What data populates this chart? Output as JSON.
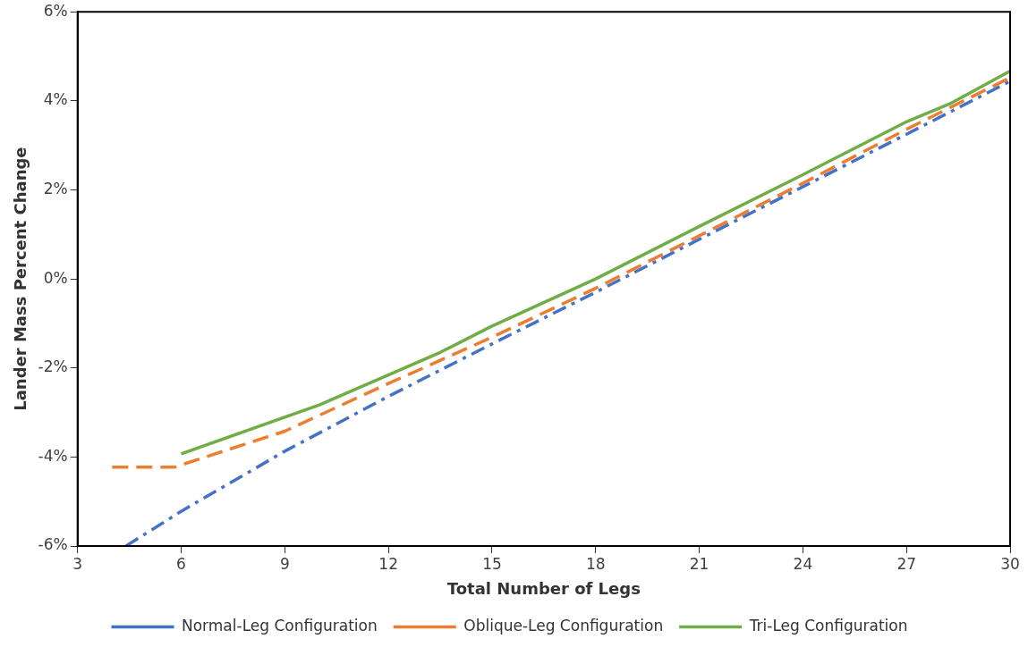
{
  "chart_data": {
    "type": "line",
    "xlabel": "Total Number of Legs",
    "ylabel": "Lander Mass Percent Change",
    "xlim": [
      3,
      30
    ],
    "xticks": [
      3,
      6,
      9,
      12,
      15,
      18,
      21,
      24,
      27,
      30
    ],
    "ylim": [
      -6,
      6
    ],
    "yticks": [
      {
        "value": -6,
        "label": "-6%"
      },
      {
        "value": -4,
        "label": "-4%"
      },
      {
        "value": -2,
        "label": "-2%"
      },
      {
        "value": 0,
        "label": "0%"
      },
      {
        "value": 2,
        "label": "2%"
      },
      {
        "value": 4,
        "label": "4%"
      },
      {
        "value": 6,
        "label": "6%"
      }
    ],
    "grid": false,
    "legend": "bottom",
    "marker": "none",
    "series": [
      {
        "name": "Normal-Leg Configuration",
        "color": "#4472c4",
        "line_style": "dashdot",
        "x": [
          4.4,
          6,
          9,
          12,
          15,
          18,
          21,
          24,
          27,
          30
        ],
        "values": [
          -6,
          -5.22,
          -3.87,
          -2.64,
          -1.46,
          -0.3,
          0.89,
          2.07,
          3.25,
          4.44
        ]
      },
      {
        "name": "Oblique-Leg Configuration",
        "color": "#ed7d31",
        "line_style": "dashed",
        "x": [
          4,
          5.8,
          9,
          12,
          15,
          18,
          21,
          24,
          27,
          30
        ],
        "values": [
          -4.23,
          -4.23,
          -3.42,
          -2.35,
          -1.31,
          -0.21,
          0.97,
          2.15,
          3.36,
          4.52
        ]
      },
      {
        "name": "Tri-Leg Configuration",
        "color": "#70ad47",
        "line_style": "solid",
        "x": [
          6,
          10,
          13.5,
          15,
          18,
          21,
          24,
          27,
          28.3,
          30
        ],
        "values": [
          -3.93,
          -2.83,
          -1.65,
          -1.06,
          0,
          1.18,
          2.34,
          3.53,
          3.95,
          4.67
        ]
      }
    ]
  }
}
